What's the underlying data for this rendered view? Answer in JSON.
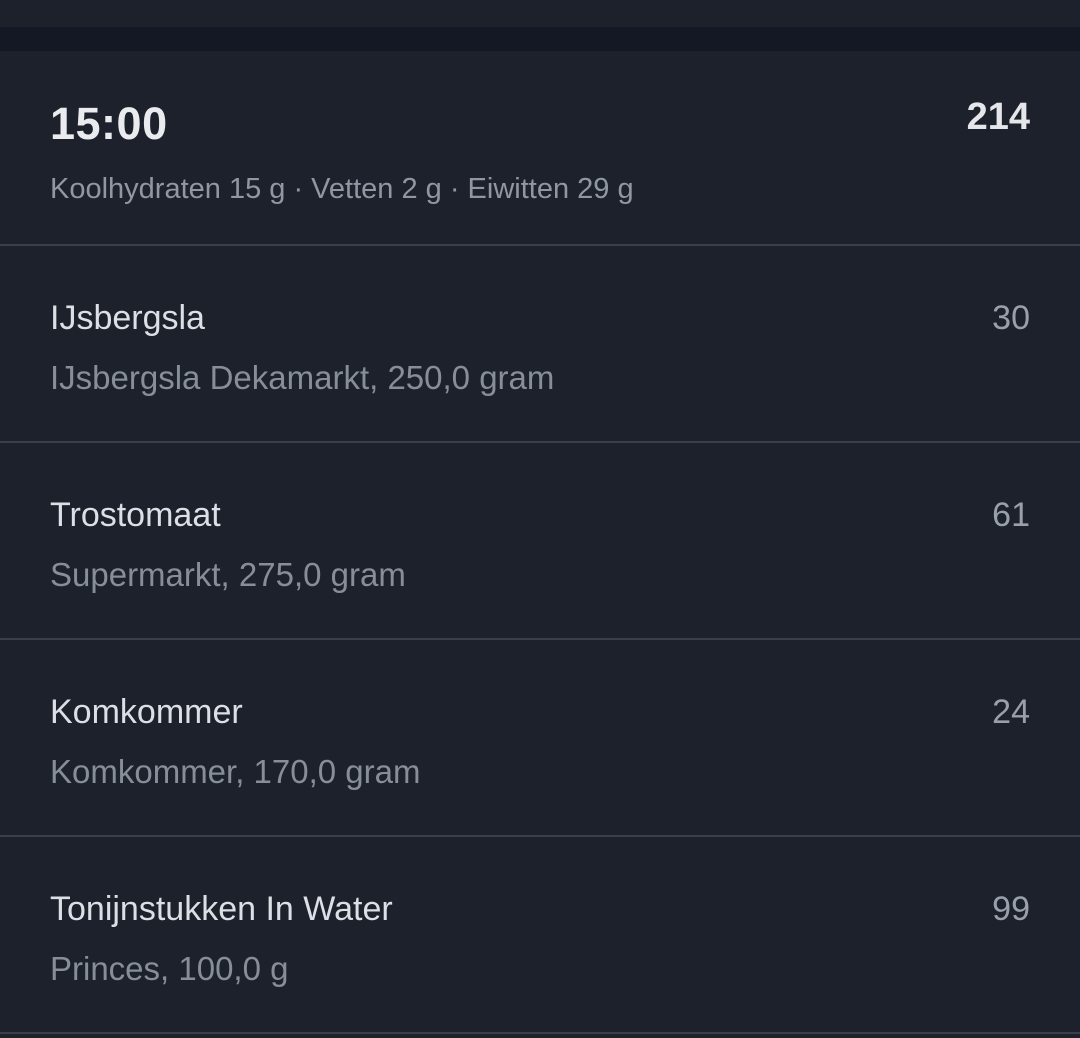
{
  "colors": {
    "page_background": "#141824",
    "card_background": "#1d212b",
    "divider": "#3a3f4a",
    "primary_text": "#e9ebee",
    "secondary_text": "#878e99",
    "value_text": "#99a0ab"
  },
  "meal": {
    "time": "15:00",
    "calories_total": "214",
    "macros_summary": "Koolhydraten 15 g · Vetten 2 g · Eiwitten 29 g",
    "items": [
      {
        "name": "IJsbergsla",
        "detail": "IJsbergsla Dekamarkt, 250,0 gram",
        "calories": "30"
      },
      {
        "name": "Trostomaat",
        "detail": "Supermarkt, 275,0 gram",
        "calories": "61"
      },
      {
        "name": "Komkommer",
        "detail": "Komkommer, 170,0 gram",
        "calories": "24"
      },
      {
        "name": "Tonijnstukken In Water",
        "detail": "Princes, 100,0 g",
        "calories": "99"
      }
    ]
  }
}
